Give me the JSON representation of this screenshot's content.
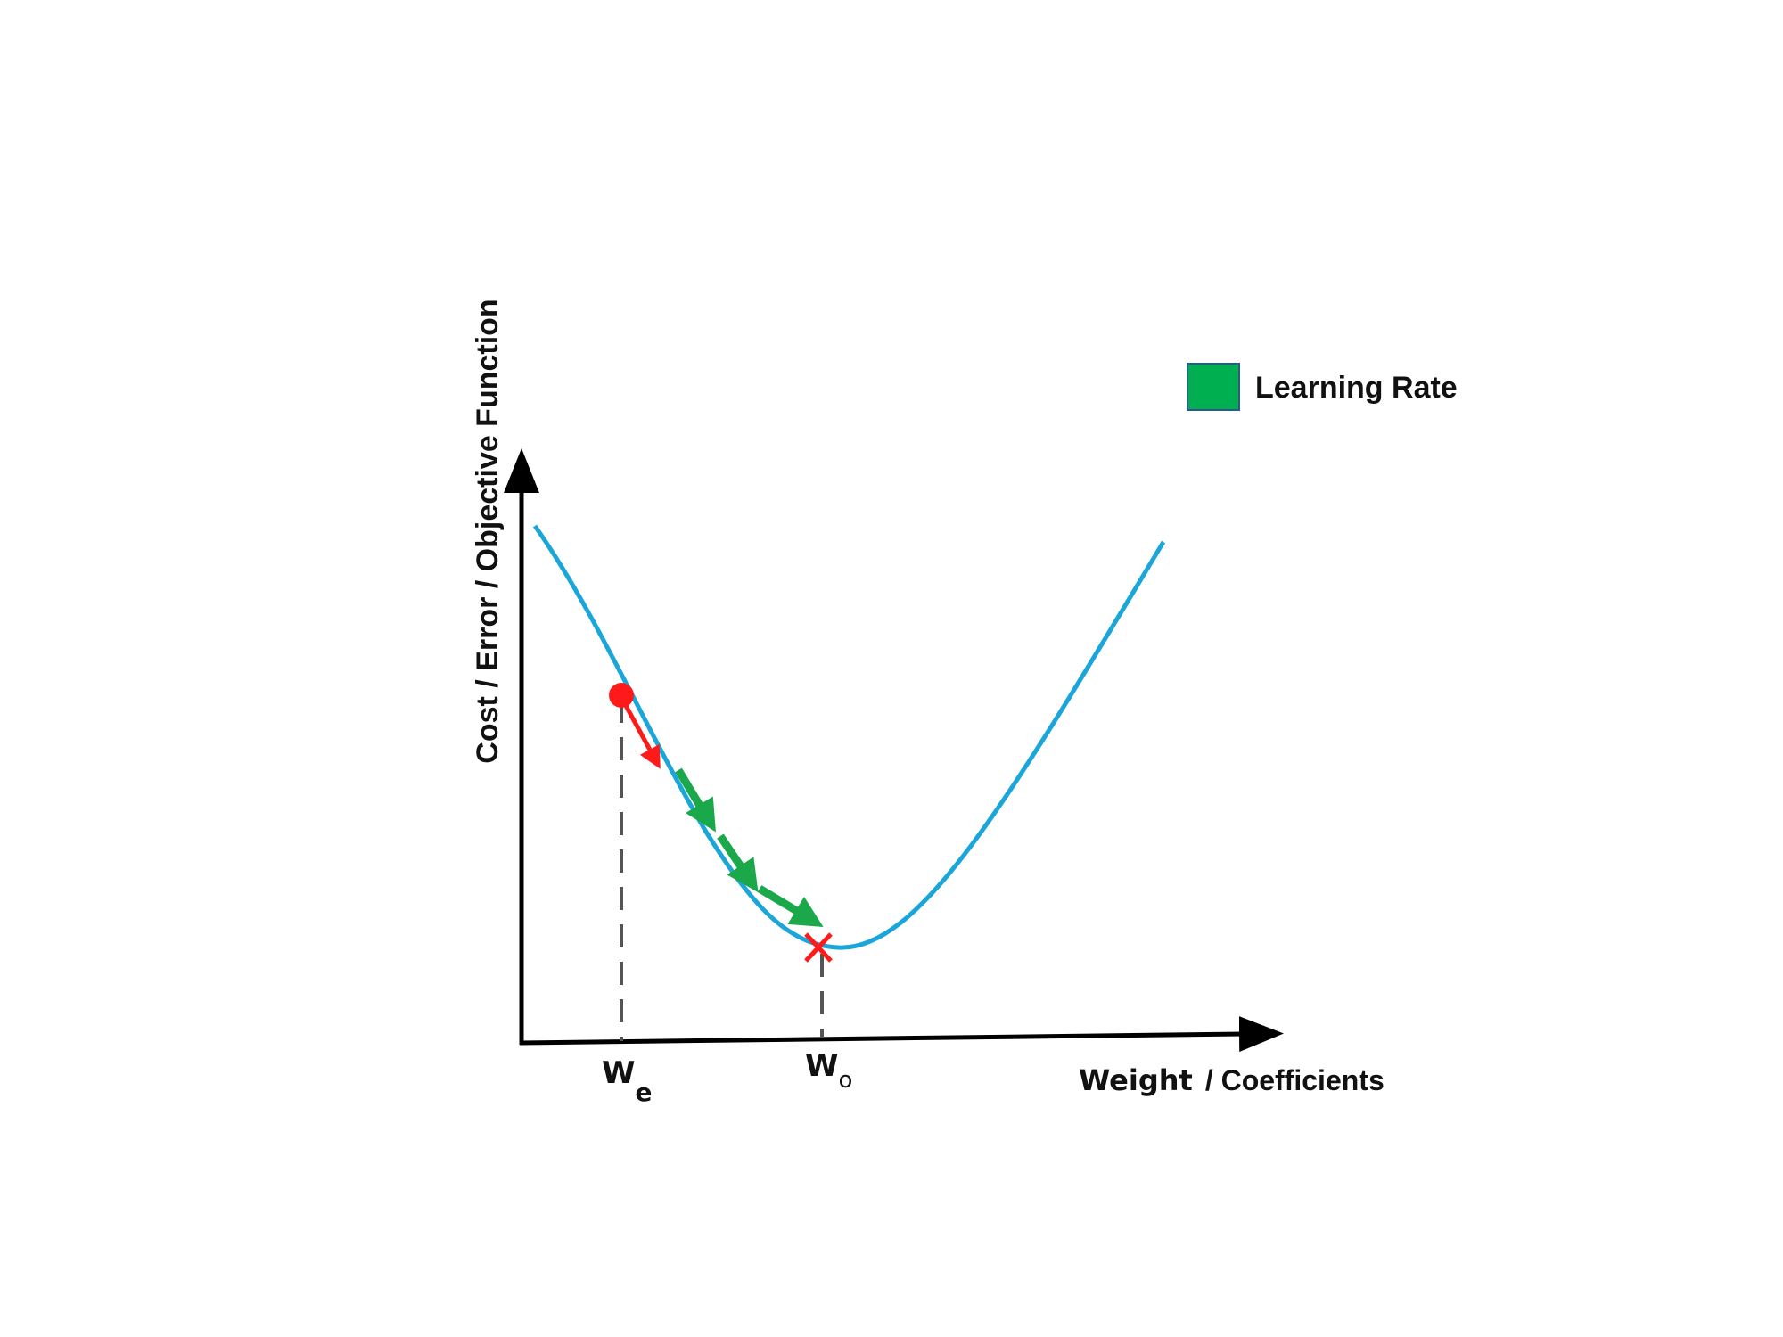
{
  "axes": {
    "x_label_a": "Weight",
    "x_label_b": "/ Coefficients",
    "y_label": "Cost  / Error / Objective Function"
  },
  "ticks": {
    "we_main": "W",
    "we_sub": "e",
    "wo_main": "W",
    "wo_sub": "o"
  },
  "legend": {
    "label": "Learning Rate",
    "swatch_color": "#00b050"
  },
  "colors": {
    "curve": "#1ba6d9",
    "start_point": "#ff1a1a",
    "step_arrows": "#1aa84a",
    "minimum_marker": "#ff1a1a",
    "axes": "#000000"
  },
  "markers": {
    "start_point": "circle",
    "minimum_point": "x-mark-icon"
  }
}
